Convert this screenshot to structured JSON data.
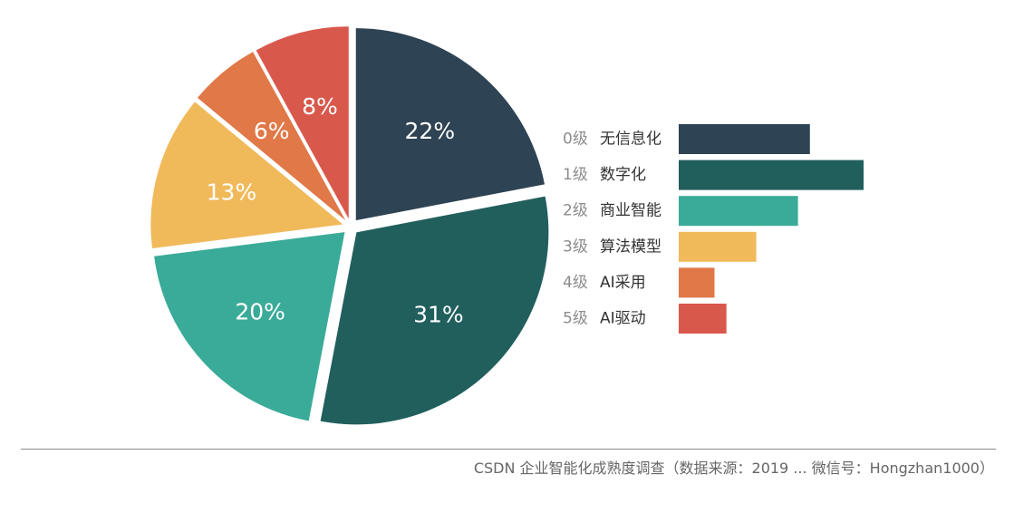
{
  "chart_data": {
    "type": "pie",
    "categories": [
      "无信息化",
      "数字化",
      "商业智能",
      "算法模型",
      "AI采用",
      "AI驱动"
    ],
    "levels": [
      "0级",
      "1级",
      "2级",
      "3级",
      "4级",
      "5级"
    ],
    "values": [
      22,
      31,
      20,
      13,
      6,
      8
    ],
    "value_labels": [
      "22%",
      "31%",
      "20%",
      "13%",
      "6%",
      "8%"
    ],
    "colors": [
      "#2e4353",
      "#215f5d",
      "#3aab98",
      "#f0b95a",
      "#e07848",
      "#d9584c"
    ],
    "legend_position": "right"
  },
  "footer": {
    "source_note": "CSDN 企业智能化成熟度调查（数据来源：2019 ... 微信号：Hongzhan1000）"
  }
}
